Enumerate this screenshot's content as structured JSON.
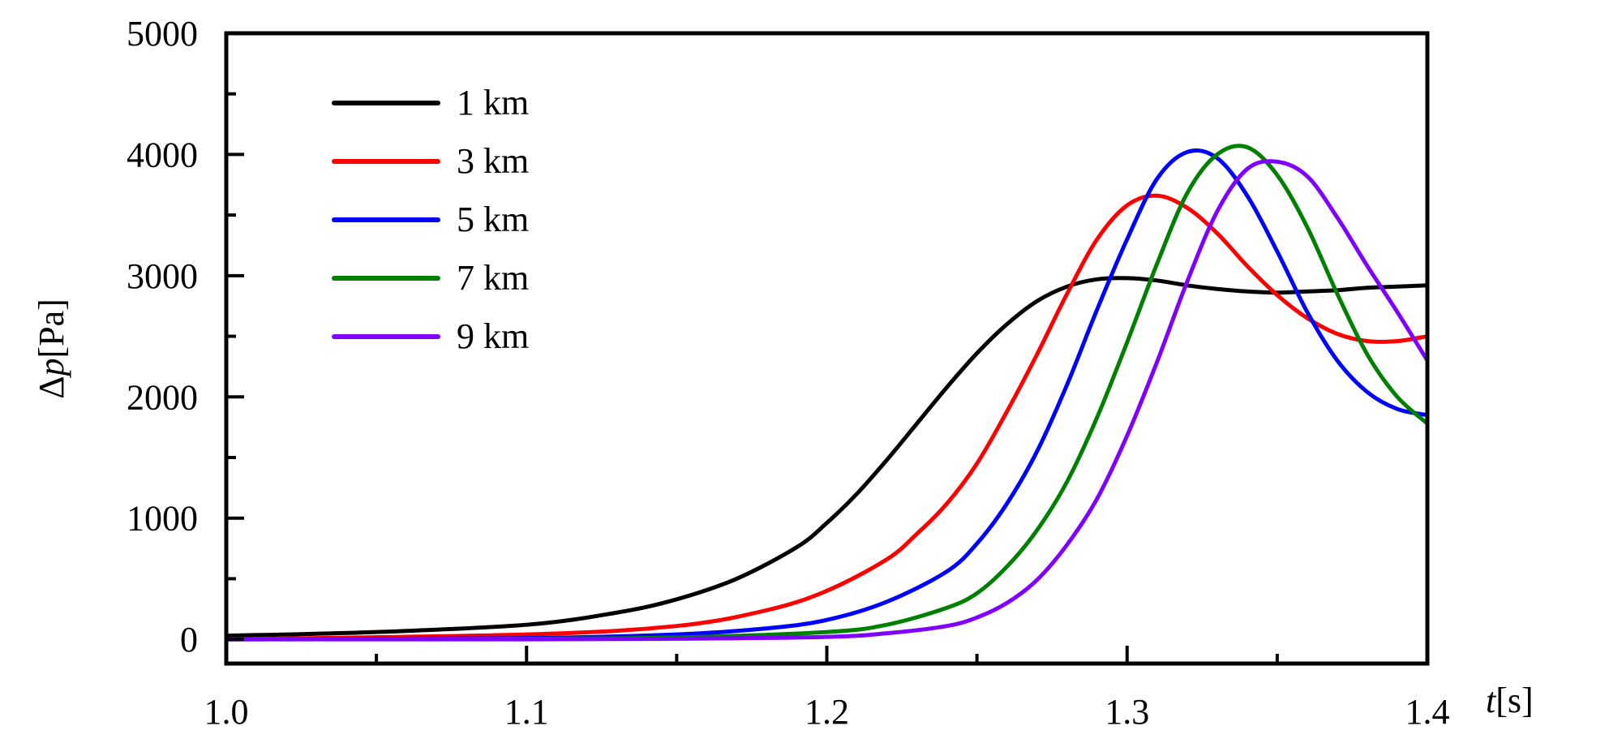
{
  "chart_data": {
    "type": "line",
    "title": "",
    "xlabel_var": "t",
    "xlabel_unit": "[s]",
    "ylabel_var": "p",
    "ylabel_prefix": "Δ",
    "ylabel_unit": "[Pa]",
    "xlim": [
      1.0,
      1.4
    ],
    "ylim": [
      -200,
      5000
    ],
    "xticks": [
      1.0,
      1.1,
      1.2,
      1.3,
      1.4
    ],
    "xtick_labels": [
      "1.0",
      "1.1",
      "1.2",
      "1.3",
      "1.4"
    ],
    "x_minor_ticks": [
      1.05,
      1.15,
      1.25,
      1.35
    ],
    "yticks": [
      0,
      1000,
      2000,
      3000,
      4000,
      5000
    ],
    "ytick_labels": [
      "0",
      "1000",
      "2000",
      "3000",
      "4000",
      "5000"
    ],
    "y_minor_ticks": [
      500,
      1500,
      2500,
      3500,
      4500
    ],
    "grid": false,
    "legend_position": "top-left",
    "series": [
      {
        "name": "1 km",
        "color": "#000000",
        "x": [
          1.0,
          1.05,
          1.1,
          1.13,
          1.15,
          1.17,
          1.19,
          1.2,
          1.21,
          1.22,
          1.23,
          1.24,
          1.25,
          1.26,
          1.27,
          1.28,
          1.29,
          1.3,
          1.31,
          1.32,
          1.33,
          1.34,
          1.35,
          1.36,
          1.37,
          1.38,
          1.39,
          1.4
        ],
        "y": [
          30,
          60,
          120,
          220,
          330,
          500,
          760,
          960,
          1200,
          1480,
          1780,
          2080,
          2360,
          2600,
          2790,
          2910,
          2970,
          2980,
          2960,
          2920,
          2890,
          2870,
          2860,
          2870,
          2880,
          2900,
          2910,
          2920
        ]
      },
      {
        "name": "3 km",
        "color": "#ff0000",
        "x": [
          1.0,
          1.1,
          1.15,
          1.18,
          1.2,
          1.22,
          1.23,
          1.24,
          1.25,
          1.26,
          1.27,
          1.28,
          1.29,
          1.3,
          1.31,
          1.32,
          1.33,
          1.34,
          1.35,
          1.36,
          1.37,
          1.38,
          1.39,
          1.4
        ],
        "y": [
          0,
          40,
          110,
          240,
          400,
          660,
          870,
          1120,
          1450,
          1880,
          2350,
          2850,
          3300,
          3580,
          3660,
          3560,
          3350,
          3080,
          2840,
          2650,
          2520,
          2460,
          2460,
          2500
        ]
      },
      {
        "name": "5 km",
        "color": "#0000ff",
        "x": [
          1.0,
          1.1,
          1.15,
          1.18,
          1.2,
          1.22,
          1.24,
          1.25,
          1.26,
          1.27,
          1.28,
          1.29,
          1.3,
          1.31,
          1.32,
          1.33,
          1.34,
          1.35,
          1.36,
          1.37,
          1.38,
          1.39,
          1.4
        ],
        "y": [
          0,
          10,
          40,
          90,
          160,
          310,
          560,
          790,
          1120,
          1550,
          2100,
          2720,
          3300,
          3800,
          4020,
          3970,
          3660,
          3200,
          2700,
          2300,
          2040,
          1900,
          1850
        ]
      },
      {
        "name": "7 km",
        "color": "#008000",
        "x": [
          1.0,
          1.1,
          1.15,
          1.2,
          1.22,
          1.24,
          1.25,
          1.26,
          1.27,
          1.28,
          1.29,
          1.3,
          1.31,
          1.32,
          1.33,
          1.34,
          1.35,
          1.36,
          1.37,
          1.38,
          1.39,
          1.4
        ],
        "y": [
          0,
          5,
          15,
          60,
          120,
          260,
          380,
          600,
          900,
          1300,
          1830,
          2450,
          3100,
          3680,
          4000,
          4060,
          3830,
          3400,
          2850,
          2350,
          2000,
          1780
        ]
      },
      {
        "name": "9 km",
        "color": "#8000ff",
        "x": [
          1.0,
          1.1,
          1.15,
          1.2,
          1.22,
          1.24,
          1.25,
          1.26,
          1.27,
          1.28,
          1.29,
          1.3,
          1.31,
          1.32,
          1.33,
          1.34,
          1.35,
          1.36,
          1.37,
          1.38,
          1.39,
          1.4
        ],
        "y": [
          0,
          0,
          5,
          20,
          50,
          110,
          180,
          300,
          490,
          780,
          1160,
          1680,
          2290,
          2950,
          3530,
          3880,
          3940,
          3820,
          3480,
          3080,
          2700,
          2300
        ]
      }
    ]
  }
}
